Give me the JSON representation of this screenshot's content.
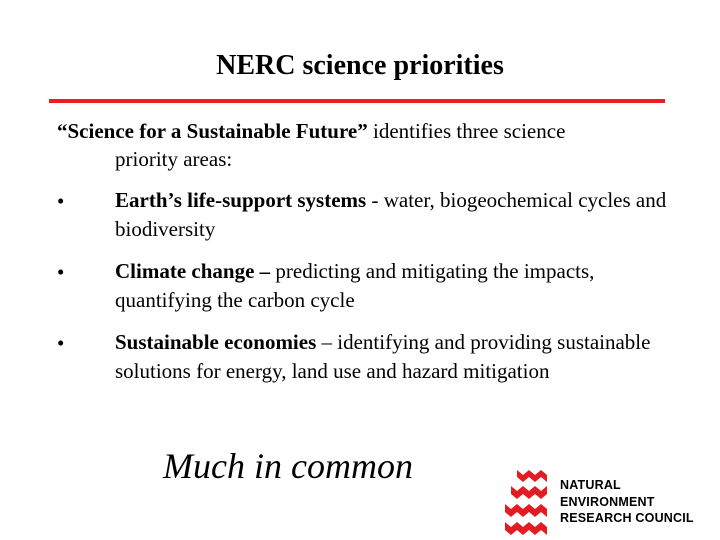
{
  "title": "NERC science priorities",
  "intro": {
    "bold": "“Science for a Sustainable Future”",
    "rest_line1": " identifies three science",
    "line2": "priority areas:"
  },
  "bullets": [
    {
      "marker": "•",
      "bold": "Earth’s life-support systems ",
      "text": " - water, biogeochemical cycles and biodiversity"
    },
    {
      "marker": "•",
      "bold": "Climate change –",
      "text": " predicting and mitigating the impacts, quantifying  the carbon cycle"
    },
    {
      "marker": "•",
      "bold": "Sustainable economies",
      "text": " – identifying and providing sustainable solutions for energy, land use  and hazard mitigation"
    }
  ],
  "tagline": "Much in common",
  "logo": {
    "lines": [
      "NATURAL",
      "ENVIRONMENT",
      "RESEARCH COUNCIL"
    ],
    "mark_color": "#e31b23",
    "rule_color": "#ee1c24"
  }
}
